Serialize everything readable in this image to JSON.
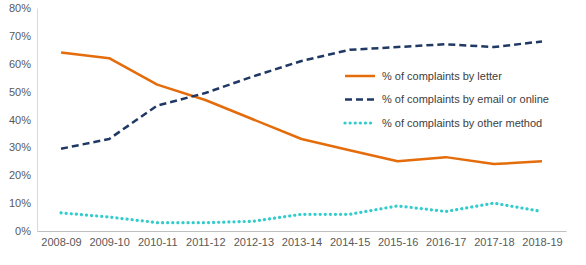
{
  "chart_data": {
    "type": "line",
    "categories": [
      "2008-09",
      "2009-10",
      "2010-11",
      "2011-12",
      "2012-13",
      "2013-14",
      "2014-15",
      "2015-16",
      "2016-17",
      "2017-18",
      "2018-19"
    ],
    "series": [
      {
        "name": "% of complaints by letter",
        "color": "#e46c0a",
        "line_style": "solid",
        "values": [
          64,
          62,
          52.5,
          47,
          40,
          33,
          29,
          25,
          26.5,
          24,
          25
        ]
      },
      {
        "name": "% of complaints by email or online",
        "color": "#1f3864",
        "line_style": "dashed",
        "values": [
          29.5,
          33,
          45,
          49.5,
          55.5,
          61,
          65,
          66,
          67,
          66,
          68
        ]
      },
      {
        "name": "% of complaints by other method",
        "color": "#33cccc",
        "line_style": "dotted",
        "values": [
          6.5,
          5,
          3,
          3,
          3.5,
          6,
          6,
          9,
          7,
          10,
          7
        ]
      }
    ],
    "ylim": [
      0,
      80
    ],
    "yticks": [
      {
        "value": 0,
        "label": "0%"
      },
      {
        "value": 10,
        "label": "10%"
      },
      {
        "value": 20,
        "label": "20%"
      },
      {
        "value": 30,
        "label": "30%"
      },
      {
        "value": 40,
        "label": "40%"
      },
      {
        "value": 50,
        "label": "50%"
      },
      {
        "value": 60,
        "label": "60%"
      },
      {
        "value": 70,
        "label": "70%"
      },
      {
        "value": 80,
        "label": "80%"
      }
    ],
    "grid": false,
    "legend": "top-right"
  }
}
